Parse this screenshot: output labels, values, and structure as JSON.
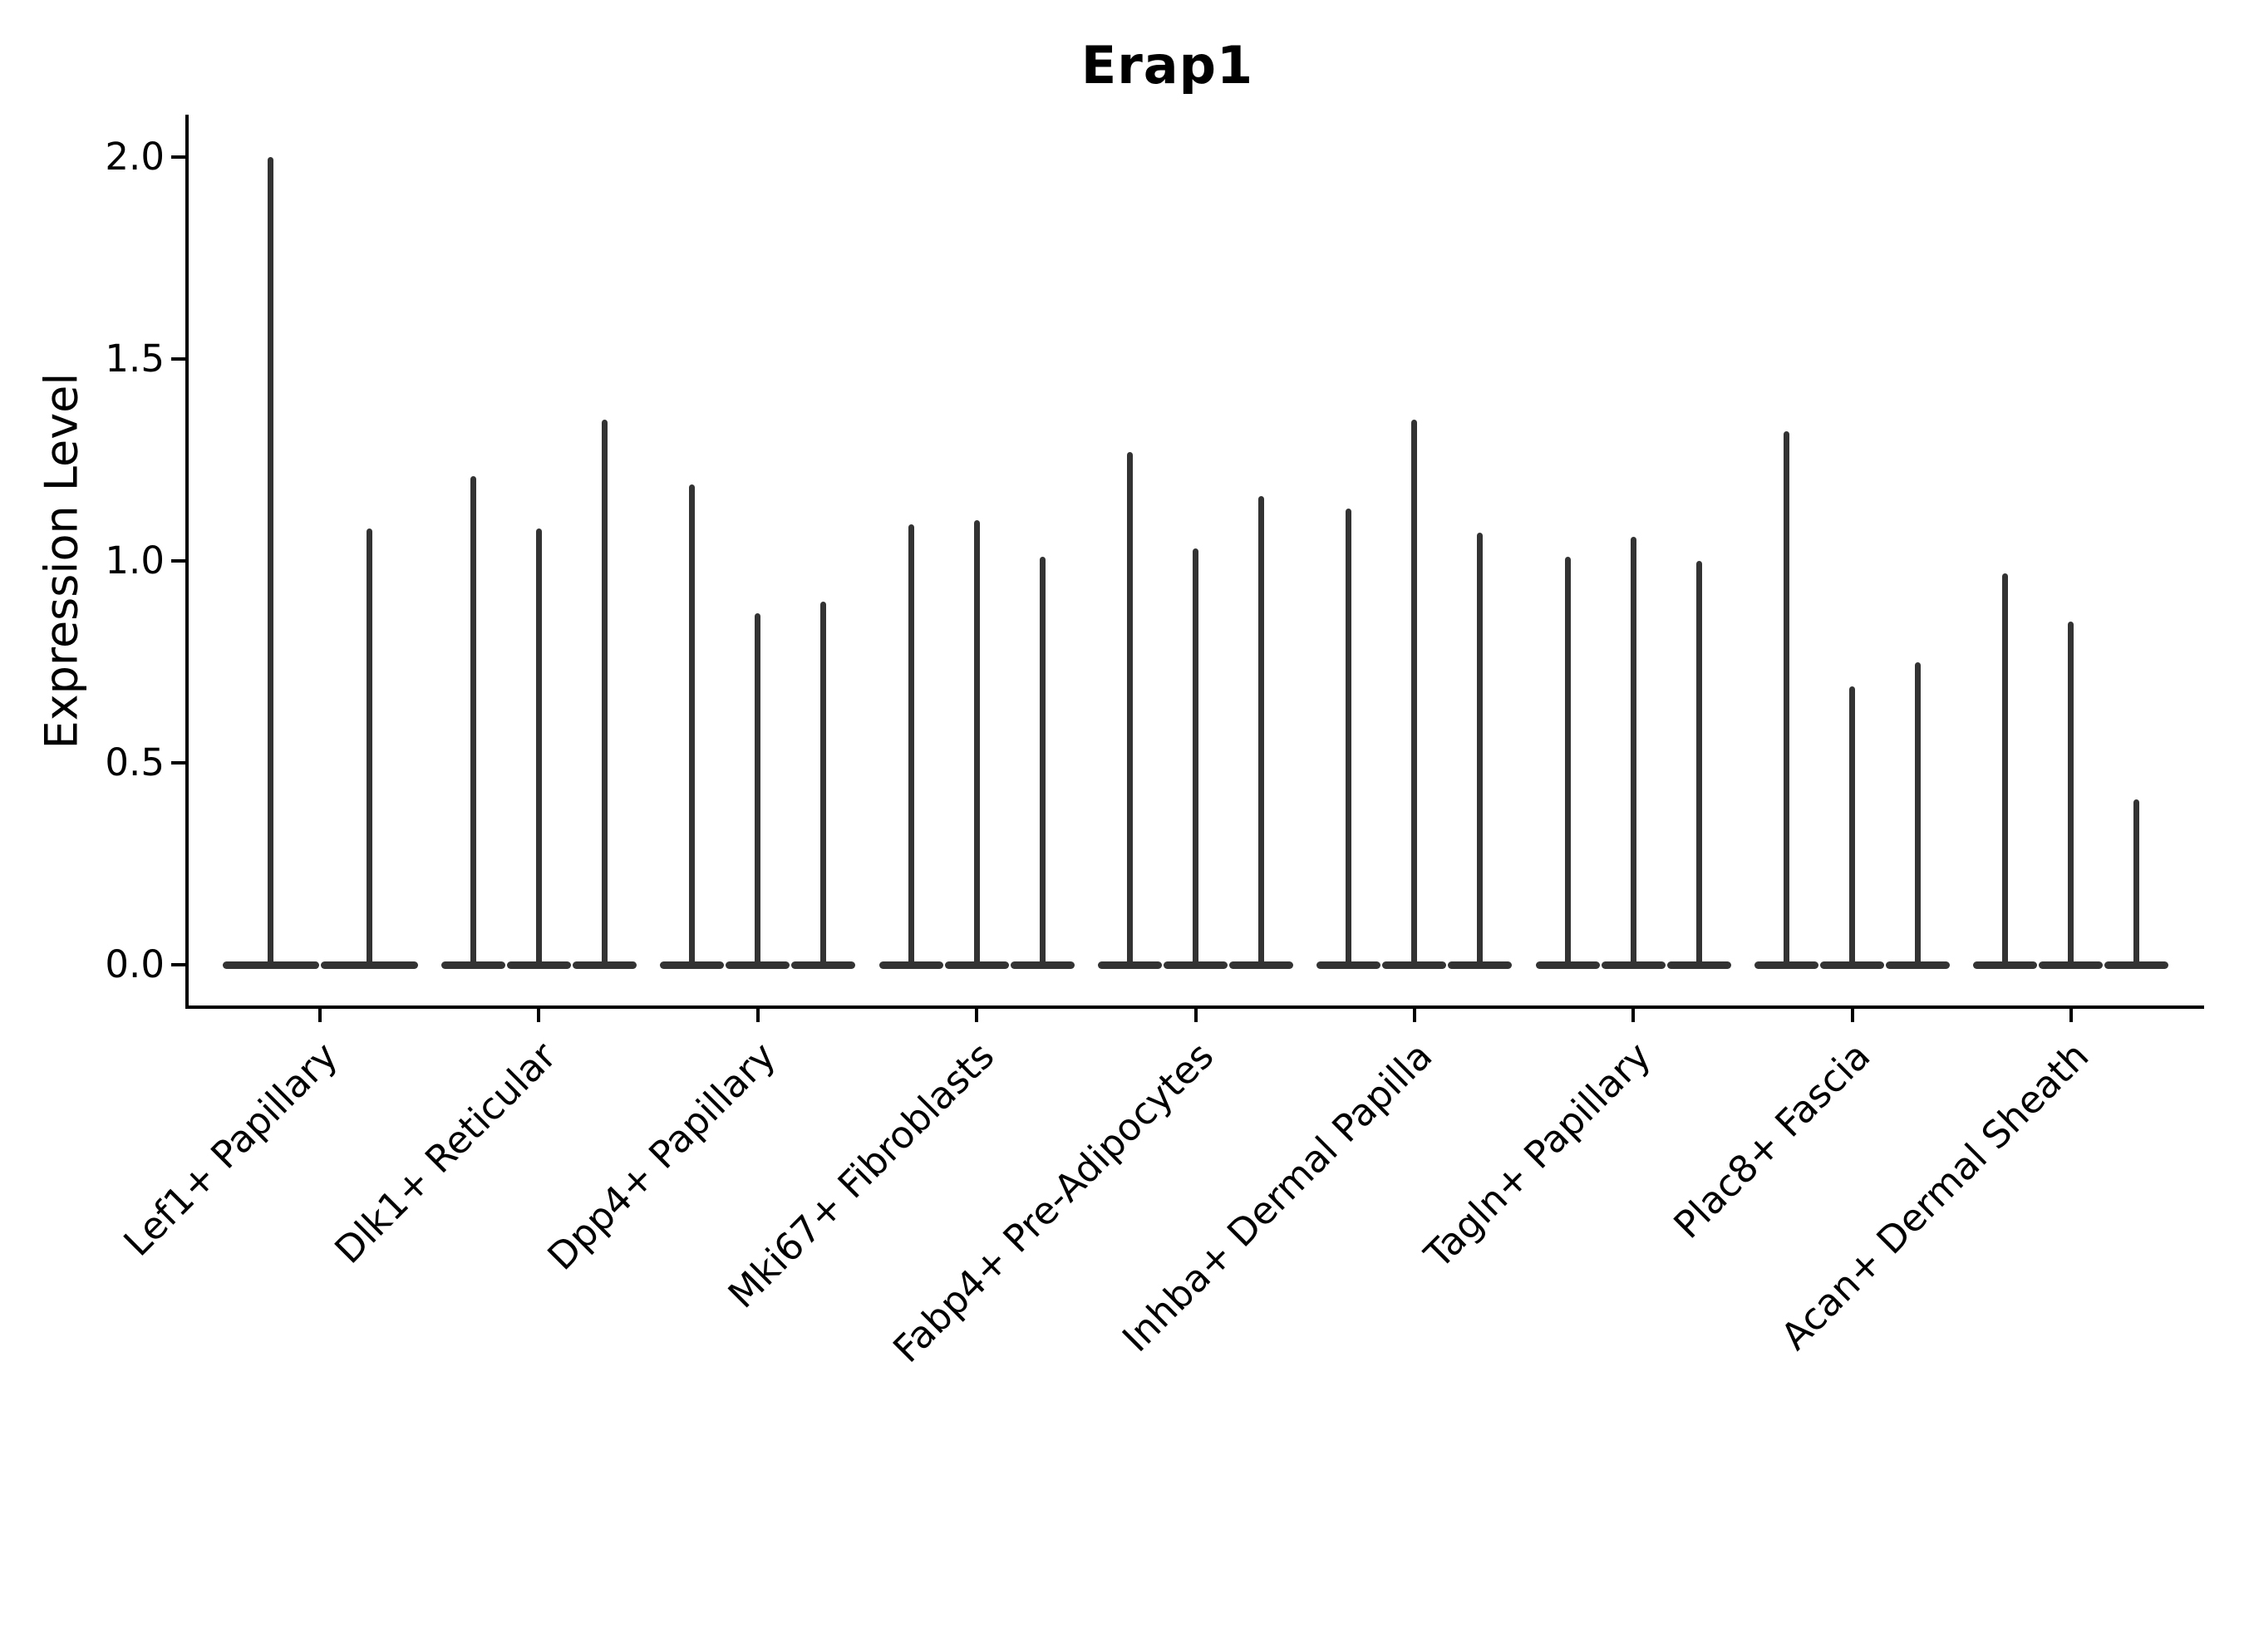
{
  "title": "Erap1",
  "y_axis": {
    "label": "Expression Level",
    "tick_labels": [
      "0.0",
      "0.5",
      "1.0",
      "1.5",
      "2.0"
    ],
    "tick_values": [
      0.0,
      0.5,
      1.0,
      1.5,
      2.0
    ]
  },
  "x_axis": {
    "tick_labels": [
      "Lef1+ Papillary",
      "Dlk1+ Reticular",
      "Dpp4+ Papillary",
      "Mki67+ Fibroblasts",
      "Fabp4+ Pre-Adipocytes",
      "Inhba+ Dermal Papilla",
      "Tagln+ Papillary",
      "Plac8+ Fascia",
      "Acan+ Dermal Sheath"
    ],
    "label_rotation_degrees": 45
  },
  "chart_data": {
    "type": "violin",
    "title": "Erap1",
    "xlabel": "",
    "ylabel": "Expression Level",
    "ylim": [
      -0.1,
      2.1
    ],
    "yticks": [
      0.0,
      0.5,
      1.0,
      1.5,
      2.0
    ],
    "grid": false,
    "legend": null,
    "description": "Seurat-style violin plot of Erap1 expression; violins are collapsed to spikes (max expression) over a flat base at 0 for each replicate within each cell-type cluster.",
    "categories": [
      "Lef1+ Papillary",
      "Dlk1+ Reticular",
      "Dpp4+ Papillary",
      "Mki67+ Fibroblasts",
      "Fabp4+ Pre-Adipocytes",
      "Inhba+ Dermal Papilla",
      "Tagln+ Papillary",
      "Plac8+ Fascia",
      "Acan+ Dermal Sheath"
    ],
    "series": [
      {
        "category": "Lef1+ Papillary",
        "violin_max_values": [
          2.0,
          1.08
        ]
      },
      {
        "category": "Dlk1+ Reticular",
        "violin_max_values": [
          1.21,
          1.08,
          1.35
        ]
      },
      {
        "category": "Dpp4+ Papillary",
        "violin_max_values": [
          1.19,
          0.87,
          0.9
        ]
      },
      {
        "category": "Mki67+ Fibroblasts",
        "violin_max_values": [
          1.09,
          1.1,
          1.01
        ]
      },
      {
        "category": "Fabp4+ Pre-Adipocytes",
        "violin_max_values": [
          1.27,
          1.03,
          1.16
        ]
      },
      {
        "category": "Inhba+ Dermal Papilla",
        "violin_max_values": [
          1.13,
          1.35,
          1.07
        ]
      },
      {
        "category": "Tagln+ Papillary",
        "violin_max_values": [
          1.01,
          1.06,
          1.0
        ]
      },
      {
        "category": "Plac8+ Fascia",
        "violin_max_values": [
          1.32,
          0.69,
          0.75
        ]
      },
      {
        "category": "Acan+ Dermal Sheath",
        "violin_max_values": [
          0.97,
          0.85,
          0.41
        ]
      }
    ],
    "baseline_value": 0.0
  },
  "colors": {
    "background": "#ffffff",
    "violin_stroke": "#333333",
    "axis": "#000000",
    "text": "#000000"
  }
}
